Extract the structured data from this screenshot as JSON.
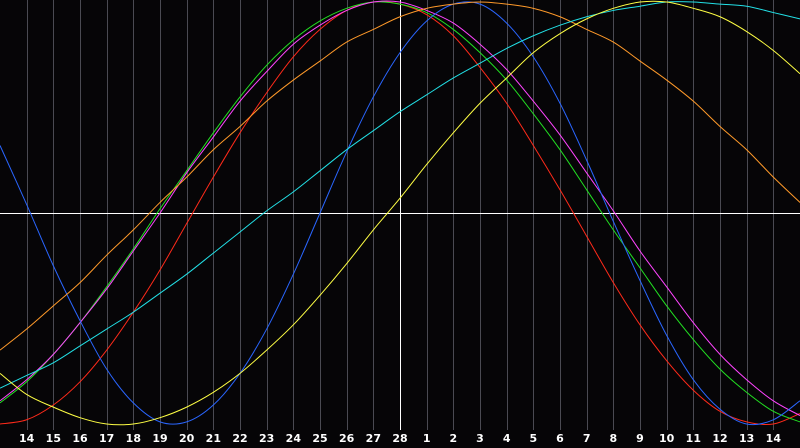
{
  "chart_data": {
    "type": "line",
    "categories": [
      null,
      "14",
      "15",
      "16",
      "17",
      "18",
      "19",
      "20",
      "21",
      "22",
      "23",
      "24",
      "25",
      "26",
      "27",
      "28",
      "1",
      "2",
      "3",
      "4",
      "5",
      "6",
      "7",
      "8",
      "9",
      "10",
      "11",
      "12",
      "13",
      "14",
      null
    ],
    "ylim": [
      -100,
      100
    ],
    "series": [
      {
        "color": "#ff2a1a",
        "values": [
          -100,
          -98,
          -91,
          -80,
          -65,
          -47,
          -27,
          -5,
          17,
          38,
          57,
          74,
          87,
          96,
          100,
          99,
          94,
          84,
          69,
          52,
          32,
          11,
          -11,
          -33,
          -53,
          -70,
          -84,
          -94,
          -99,
          -100,
          -95
        ]
      },
      {
        "color": "#22e022",
        "values": [
          -90,
          -80,
          -67,
          -52,
          -35,
          -17,
          2,
          20,
          38,
          55,
          70,
          82,
          91,
          97,
          100,
          99,
          95,
          87,
          76,
          63,
          47,
          30,
          11,
          -8,
          -26,
          -44,
          -60,
          -74,
          -85,
          -94,
          -99
        ]
      },
      {
        "color": "#ff44ff",
        "values": [
          -89,
          -79,
          -67,
          -52,
          -36,
          -18,
          0,
          19,
          36,
          53,
          67,
          80,
          89,
          96,
          100,
          100,
          96,
          90,
          80,
          68,
          53,
          37,
          19,
          1,
          -18,
          -35,
          -52,
          -67,
          -79,
          -89,
          -96
        ]
      },
      {
        "color": "#2a66ff",
        "values": [
          32,
          4,
          -25,
          -51,
          -74,
          -90,
          -99,
          -99,
          -91,
          -76,
          -55,
          -29,
          0,
          29,
          55,
          76,
          91,
          99,
          99,
          90,
          74,
          52,
          25,
          -4,
          -32,
          -58,
          -79,
          -93,
          -100,
          -98,
          -89
        ]
      },
      {
        "color": "#ff9a2a",
        "values": [
          -65,
          -55,
          -44,
          -33,
          -20,
          -8,
          5,
          17,
          30,
          41,
          53,
          63,
          72,
          81,
          87,
          93,
          97,
          99,
          100,
          99,
          97,
          93,
          87,
          81,
          72,
          63,
          53,
          41,
          30,
          17,
          5
        ]
      },
      {
        "color": "#22e0e6",
        "values": [
          -83,
          -77,
          -71,
          -63,
          -55,
          -47,
          -38,
          -29,
          -19,
          -9,
          1,
          10,
          20,
          30,
          39,
          48,
          56,
          64,
          71,
          78,
          84,
          89,
          93,
          96,
          98,
          100,
          100,
          99,
          98,
          95,
          92
        ]
      },
      {
        "color": "#ffff44",
        "values": [
          -76,
          -86,
          -92,
          -97,
          -100,
          -100,
          -97,
          -92,
          -85,
          -76,
          -65,
          -53,
          -39,
          -24,
          -8,
          7,
          23,
          38,
          52,
          64,
          76,
          85,
          92,
          97,
          100,
          100,
          97,
          93,
          86,
          77,
          66
        ]
      }
    ]
  }
}
